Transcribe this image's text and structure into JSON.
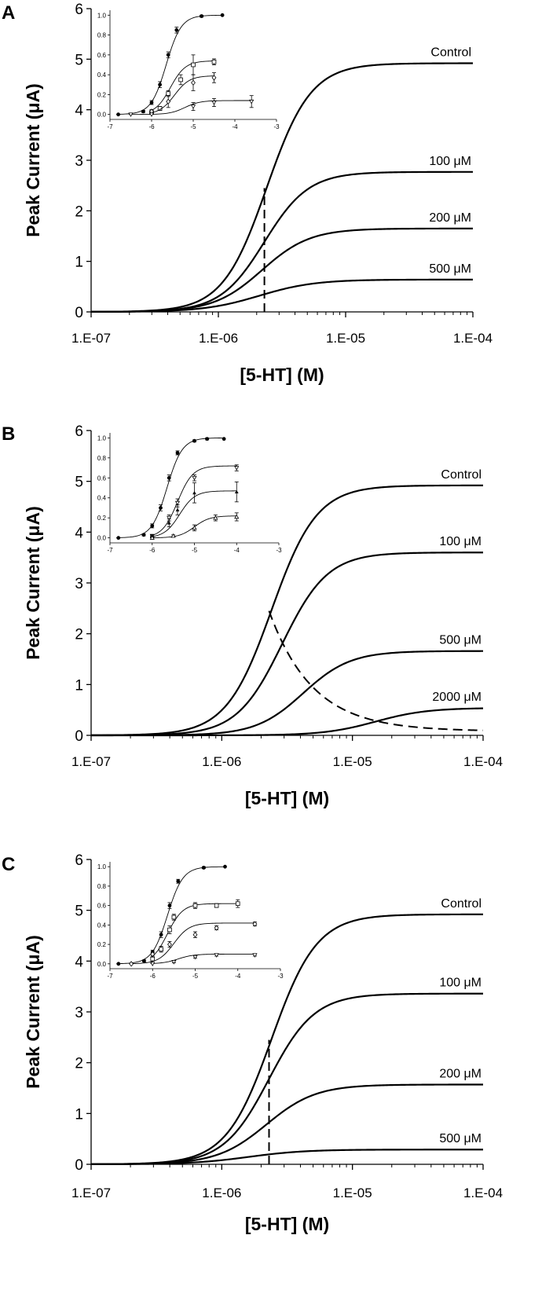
{
  "chart_data": [
    {
      "panel_label": "A",
      "type": "line",
      "ylabel": "Peak Current (μA)",
      "xlabel": "[5-HT] (M)",
      "x_scale": "log",
      "xlim": [
        1e-07,
        0.0001
      ],
      "ylim": [
        0,
        6
      ],
      "x_tick_labels": [
        "1.E-07",
        "1.E-06",
        "1.E-05",
        "1.E-04"
      ],
      "y_tick_labels": [
        "0",
        "1",
        "2",
        "3",
        "4",
        "5",
        "6"
      ],
      "series": [
        {
          "name": "Control",
          "ec50": 2.4e-06,
          "top": 4.92,
          "hill": 2.5
        },
        {
          "name": "100 μM",
          "ec50": 2.3e-06,
          "top": 2.77,
          "hill": 2.5
        },
        {
          "name": "200 μM",
          "ec50": 2.2e-06,
          "top": 1.65,
          "hill": 2.3
        },
        {
          "name": "500 μM",
          "ec50": 2.1e-06,
          "top": 0.64,
          "hill": 2.0
        }
      ],
      "dashed_line": {
        "type": "vertical",
        "x": 2.3e-06,
        "y_from": 0.0,
        "y_to": 2.45
      },
      "inset": {
        "xlim": [
          -7,
          -3
        ],
        "ylim": [
          -0.05,
          1.05
        ],
        "x_tick_labels": [
          "-7",
          "-6",
          "-5",
          "-4",
          "-3"
        ],
        "y_tick_labels": [
          "0.0",
          "0.2",
          "0.4",
          "0.6",
          "0.8",
          "1.0"
        ],
        "series": [
          {
            "marker": "filled-circle",
            "x": [
              -6.8,
              -6.2,
              -6.0,
              -5.8,
              -5.6,
              -5.4,
              -4.8,
              -4.3
            ],
            "y": [
              0.0,
              0.03,
              0.12,
              0.3,
              0.6,
              0.85,
              0.99,
              1.0
            ],
            "err": [
              0,
              0.01,
              0.02,
              0.03,
              0.03,
              0.03,
              0.01,
              0
            ],
            "logec50": -5.65,
            "top": 1.0
          },
          {
            "marker": "open-square",
            "x": [
              -6.0,
              -5.8,
              -5.6,
              -5.3,
              -5.0,
              -4.5
            ],
            "y": [
              0.02,
              0.06,
              0.21,
              0.35,
              0.5,
              0.53
            ],
            "err": [
              0.01,
              0.02,
              0.03,
              0.05,
              0.1,
              0.03
            ],
            "logec50": -5.55,
            "top": 0.54
          },
          {
            "marker": "open-diamond",
            "x": [
              -6.0,
              -5.6,
              -5.0,
              -4.5
            ],
            "y": [
              0.03,
              0.13,
              0.32,
              0.37
            ],
            "err": [
              0.02,
              0.06,
              0.08,
              0.05
            ],
            "logec50": -5.45,
            "top": 0.39
          },
          {
            "marker": "open-triangle-down",
            "x": [
              -6.5,
              -6.0,
              -5.0,
              -4.5,
              -3.6
            ],
            "y": [
              0.0,
              0.0,
              0.08,
              0.12,
              0.13
            ],
            "err": [
              0,
              0,
              0.04,
              0.04,
              0.06
            ],
            "logec50": -5.2,
            "top": 0.14
          }
        ]
      }
    },
    {
      "panel_label": "B",
      "type": "line",
      "ylabel": "Peak Current (μA)",
      "xlabel": "[5-HT] (M)",
      "x_scale": "log",
      "xlim": [
        1e-07,
        0.0001
      ],
      "ylim": [
        0,
        6
      ],
      "x_tick_labels": [
        "1.E-07",
        "1.E-06",
        "1.E-05",
        "1.E-04"
      ],
      "y_tick_labels": [
        "0",
        "1",
        "2",
        "3",
        "4",
        "5",
        "6"
      ],
      "series": [
        {
          "name": "Control",
          "ec50": 2.4e-06,
          "top": 4.92,
          "hill": 2.5
        },
        {
          "name": "100 μM",
          "ec50": 2.9e-06,
          "top": 3.6,
          "hill": 2.5
        },
        {
          "name": "500 μM",
          "ec50": 4.2e-06,
          "top": 1.66,
          "hill": 2.4
        },
        {
          "name": "2000 μM",
          "ec50": 1.5e-05,
          "top": 0.54,
          "hill": 2.2
        }
      ],
      "dashed_line": {
        "type": "decay",
        "x_start": 2.3e-06,
        "y_start": 2.45,
        "y_end": 0.08
      },
      "inset": {
        "xlim": [
          -7,
          -3
        ],
        "ylim": [
          -0.05,
          1.05
        ],
        "x_tick_labels": [
          "-7",
          "-6",
          "-5",
          "-4",
          "-3"
        ],
        "y_tick_labels": [
          "0.0",
          "0.2",
          "0.4",
          "0.6",
          "0.8",
          "1.0"
        ],
        "series": [
          {
            "marker": "filled-circle",
            "x": [
              -6.8,
              -6.2,
              -6.0,
              -5.8,
              -5.6,
              -5.4,
              -5.0,
              -4.7,
              -4.3
            ],
            "y": [
              0.0,
              0.03,
              0.12,
              0.3,
              0.6,
              0.85,
              0.97,
              0.99,
              0.99
            ],
            "err": [
              0,
              0.01,
              0.02,
              0.03,
              0.03,
              0.02,
              0.01,
              0.01,
              0
            ],
            "logec50": -5.65,
            "top": 1.0
          },
          {
            "marker": "open-triangle-down",
            "x": [
              -6.0,
              -5.6,
              -5.4,
              -5.0,
              -4.0
            ],
            "y": [
              0.02,
              0.2,
              0.35,
              0.6,
              0.7
            ],
            "err": [
              0.01,
              0.03,
              0.04,
              0.03,
              0.03
            ],
            "logec50": -5.4,
            "top": 0.72
          },
          {
            "marker": "filled-triangle",
            "x": [
              -6.0,
              -5.6,
              -5.4,
              -5.0,
              -4.0
            ],
            "y": [
              0.02,
              0.15,
              0.28,
              0.45,
              0.46
            ],
            "err": [
              0.01,
              0.04,
              0.05,
              0.1,
              0.1
            ],
            "logec50": -5.35,
            "top": 0.47
          },
          {
            "marker": "open-triangle-up",
            "x": [
              -6.0,
              -5.5,
              -5.0,
              -4.5,
              -4.0
            ],
            "y": [
              0.0,
              0.02,
              0.1,
              0.2,
              0.21
            ],
            "err": [
              0,
              0.01,
              0.03,
              0.03,
              0.04
            ],
            "logec50": -5.0,
            "top": 0.22
          }
        ]
      }
    },
    {
      "panel_label": "C",
      "type": "line",
      "ylabel": "Peak Current (μA)",
      "xlabel": "[5-HT] (M)",
      "x_scale": "log",
      "xlim": [
        1e-07,
        0.0001
      ],
      "ylim": [
        0,
        6
      ],
      "x_tick_labels": [
        "1.E-07",
        "1.E-06",
        "1.E-05",
        "1.E-04"
      ],
      "y_tick_labels": [
        "0",
        "1",
        "2",
        "3",
        "4",
        "5",
        "6"
      ],
      "series": [
        {
          "name": "Control",
          "ec50": 2.4e-06,
          "top": 4.92,
          "hill": 2.5
        },
        {
          "name": "100 μM",
          "ec50": 2.3e-06,
          "top": 3.36,
          "hill": 2.5
        },
        {
          "name": "200 μM",
          "ec50": 2.2e-06,
          "top": 1.57,
          "hill": 2.3
        },
        {
          "name": "500 μM",
          "ec50": 1.6e-06,
          "top": 0.29,
          "hill": 2.0
        }
      ],
      "dashed_line": {
        "type": "vertical",
        "x": 2.3e-06,
        "y_from": 0.0,
        "y_to": 2.45
      },
      "inset": {
        "xlim": [
          -7,
          -3
        ],
        "ylim": [
          -0.05,
          1.05
        ],
        "x_tick_labels": [
          "-7",
          "-6",
          "-5",
          "-4",
          "-3"
        ],
        "y_tick_labels": [
          "0.0",
          "0.2",
          "0.4",
          "0.6",
          "0.8",
          "1.0"
        ],
        "series": [
          {
            "marker": "filled-circle",
            "x": [
              -6.8,
              -6.2,
              -6.0,
              -5.8,
              -5.6,
              -5.4,
              -4.8,
              -4.3
            ],
            "y": [
              0.0,
              0.03,
              0.12,
              0.3,
              0.6,
              0.85,
              0.99,
              1.0
            ],
            "err": [
              0,
              0.01,
              0.02,
              0.03,
              0.03,
              0.02,
              0.01,
              0
            ],
            "logec50": -5.65,
            "top": 1.0
          },
          {
            "marker": "open-square",
            "x": [
              -6.0,
              -5.8,
              -5.6,
              -5.5,
              -5.0,
              -4.5,
              -4.0
            ],
            "y": [
              0.05,
              0.15,
              0.35,
              0.48,
              0.6,
              0.6,
              0.62
            ],
            "err": [
              0.02,
              0.03,
              0.04,
              0.03,
              0.03,
              0.02,
              0.04
            ],
            "logec50": -5.65,
            "top": 0.62
          },
          {
            "marker": "open-diamond",
            "x": [
              -6.5,
              -6.0,
              -5.6,
              -5.0,
              -4.5,
              -3.6
            ],
            "y": [
              0.0,
              0.1,
              0.2,
              0.3,
              0.37,
              0.41
            ],
            "err": [
              0,
              0.02,
              0.03,
              0.03,
              0.02,
              0.02
            ],
            "logec50": -5.5,
            "top": 0.42
          },
          {
            "marker": "open-triangle-down",
            "x": [
              -6.0,
              -5.5,
              -5.0,
              -4.5,
              -3.6
            ],
            "y": [
              0.0,
              0.02,
              0.07,
              0.09,
              0.09
            ],
            "err": [
              0,
              0.01,
              0.01,
              0.01,
              0.01
            ],
            "logec50": -5.4,
            "top": 0.1
          }
        ]
      }
    }
  ]
}
